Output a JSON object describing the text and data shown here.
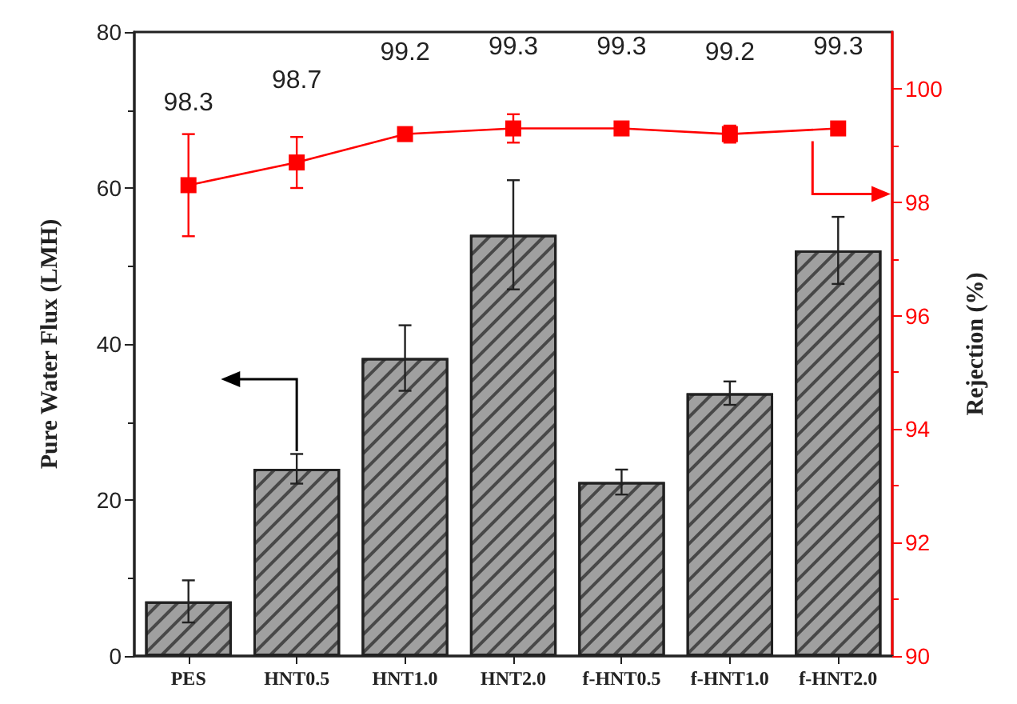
{
  "chart_data": {
    "type": "bar",
    "ylabel": "Pure Water Flux (LMH)",
    "y2label": "Rejection (%)",
    "categories": [
      "PES",
      "HNT0.5",
      "HNT1.0",
      "HNT2.0",
      "f-HNT0.5",
      "f-HNT1.0",
      "f-HNT2.0"
    ],
    "series": [
      {
        "color": "#a0a0a0",
        "values": [
          7,
          24,
          38.2,
          54,
          22.3,
          33.7,
          52
        ],
        "errors": [
          2.7,
          1.9,
          4.2,
          7,
          1.6,
          1.5,
          4.3
        ]
      },
      {
        "type": "line",
        "axis": "y2",
        "color": "#ff0000",
        "marker": "square",
        "values": [
          98.3,
          98.7,
          99.2,
          99.3,
          99.3,
          99.2,
          99.3
        ],
        "errors": [
          0.9,
          0.45,
          null,
          0.25,
          null,
          0.15,
          null
        ],
        "value_labels": [
          "98.3",
          "98.7",
          "99.2",
          "99.3",
          "99.3",
          "99.2",
          "99.3"
        ]
      }
    ],
    "ylim": [
      0,
      80
    ],
    "yticks": [
      0,
      20,
      40,
      60,
      80
    ],
    "y2lim": [
      90,
      101
    ],
    "y2ticks": [
      90,
      92,
      94,
      96,
      98,
      100
    ],
    "grid": false
  }
}
